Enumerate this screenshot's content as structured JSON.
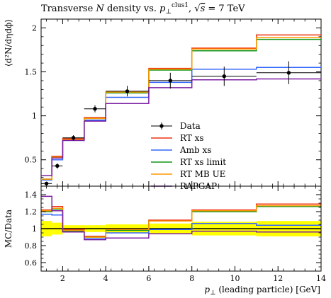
{
  "chart_data": {
    "type": "line",
    "title": "Transverse N density vs. p⊥clus1, √s = 7 TeV",
    "title_parts": {
      "prefix": "Transverse ",
      "var": "N",
      "mid": " density vs. ",
      "pvar": "p",
      "sub": "⊥",
      "sup": "clus1",
      "sep": ", ",
      "sqrt": "√",
      "s": "s",
      "suffix": " = 7 TeV"
    },
    "xlabel": "p⊥ (leading particle) [GeV]",
    "xlabel_parts": {
      "p": "p",
      "sub": "⊥",
      "rest": " (leading particle) [GeV]"
    },
    "ylabel_main": "⟨d²N/dηdϕ⟩",
    "ylabel_ratio": "MC/Data",
    "xlim": [
      1,
      14
    ],
    "ylim_main": [
      0.2,
      2.1
    ],
    "ylim_ratio": [
      0.5,
      1.5
    ],
    "x_ticks": [
      2,
      4,
      6,
      8,
      10,
      12,
      14
    ],
    "y_ticks_main": [
      0.5,
      1,
      1.5,
      2
    ],
    "y_ticks_ratio": [
      0.6,
      0.8,
      1,
      1.2,
      1.4
    ],
    "y_tick_labels_ratio": [
      "0.6",
      "0.8",
      "1",
      "1.2",
      "1.4"
    ],
    "bin_edges": [
      1,
      1.5,
      2,
      3,
      4,
      6,
      8,
      11,
      14
    ],
    "data": {
      "name": "Data",
      "color": "#000000",
      "x": [
        1.25,
        1.75,
        2.5,
        3.5,
        5,
        7,
        9.5,
        12.5
      ],
      "y": [
        0.23,
        0.43,
        0.75,
        1.08,
        1.28,
        1.4,
        1.45,
        1.49
      ],
      "yerr": [
        0.02,
        0.03,
        0.03,
        0.04,
        0.06,
        0.09,
        0.11,
        0.13
      ]
    },
    "series": [
      {
        "name": "RT xs",
        "color": "#ee3311",
        "values": [
          0.28,
          0.54,
          0.74,
          0.98,
          1.27,
          1.54,
          1.77,
          1.92
        ],
        "ratio": [
          1.22,
          1.26,
          0.99,
          0.91,
          0.99,
          1.1,
          1.22,
          1.29
        ]
      },
      {
        "name": "Amb xs",
        "color": "#3366ff",
        "values": [
          0.27,
          0.5,
          0.72,
          0.95,
          1.21,
          1.38,
          1.53,
          1.55
        ],
        "ratio": [
          1.17,
          1.16,
          0.96,
          0.88,
          0.95,
          0.99,
          1.06,
          1.04
        ]
      },
      {
        "name": "RT xs limit",
        "color": "#109618",
        "values": [
          0.28,
          0.53,
          0.73,
          0.97,
          1.26,
          1.52,
          1.74,
          1.87
        ],
        "ratio": [
          1.2,
          1.23,
          0.97,
          0.9,
          0.98,
          1.09,
          1.2,
          1.26
        ]
      },
      {
        "name": "RT MB UE",
        "color": "#ff9900",
        "values": [
          0.28,
          0.53,
          0.73,
          0.97,
          1.27,
          1.53,
          1.76,
          1.89
        ],
        "ratio": [
          1.21,
          1.24,
          0.98,
          0.9,
          0.99,
          1.09,
          1.21,
          1.27
        ]
      },
      {
        "name": "RAPGAP",
        "color": "#7b1fa2",
        "values": [
          0.32,
          0.52,
          0.72,
          0.94,
          1.14,
          1.32,
          1.41,
          1.42
        ],
        "ratio": [
          1.38,
          1.21,
          0.96,
          0.87,
          0.89,
          0.94,
          0.97,
          0.96
        ]
      }
    ],
    "ratio_band": {
      "color": "#ffff00",
      "err": [
        0.09,
        0.07,
        0.04,
        0.04,
        0.05,
        0.06,
        0.08,
        0.09
      ]
    },
    "legend_position": "right-center"
  }
}
